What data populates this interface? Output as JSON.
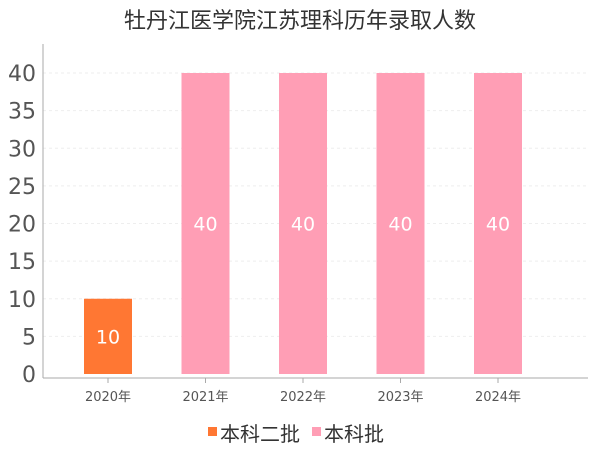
{
  "chart_data": {
    "type": "bar",
    "title": "牡丹江医学院江苏理科历年录取人数",
    "categories": [
      "2020年",
      "2021年",
      "2022年",
      "2023年",
      "2024年"
    ],
    "ylim": [
      0,
      40
    ],
    "yticks": [
      0,
      5,
      10,
      15,
      20,
      25,
      30,
      35,
      40
    ],
    "grid": true,
    "legend_position": "bottom",
    "series": [
      {
        "name": "本科二批",
        "color": "#ff7733",
        "values": [
          10,
          null,
          null,
          null,
          null
        ],
        "labels": [
          "10",
          "",
          "",
          "",
          ""
        ]
      },
      {
        "name": "本科批",
        "color": "#ff9eb5",
        "values": [
          null,
          40,
          40,
          40,
          40
        ],
        "labels": [
          "",
          "40",
          "40",
          "40",
          "40"
        ]
      }
    ]
  }
}
